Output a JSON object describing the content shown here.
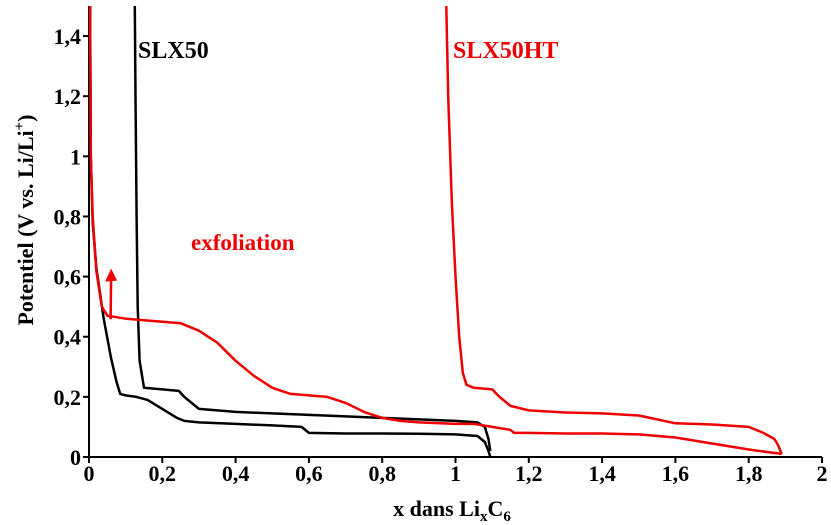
{
  "chart_data": {
    "type": "line",
    "xlabel": "x dans Li",
    "xlabel_sub1": "x",
    "xlabel_mid": "C",
    "xlabel_sub2": "6",
    "ylabel": "Potentiel (V vs. Li/Li",
    "ylabel_sup": "+",
    "ylabel_end": ")",
    "xlim": [
      0,
      2
    ],
    "ylim": [
      0,
      1.5
    ],
    "x_ticks": [
      {
        "v": 0,
        "label": "0"
      },
      {
        "v": 0.2,
        "label": "0,2"
      },
      {
        "v": 0.4,
        "label": "0,4"
      },
      {
        "v": 0.6,
        "label": "0,6"
      },
      {
        "v": 0.8,
        "label": "0,8"
      },
      {
        "v": 1,
        "label": "1"
      },
      {
        "v": 1.2,
        "label": "1,2"
      },
      {
        "v": 1.4,
        "label": "1,4"
      },
      {
        "v": 1.6,
        "label": "1,6"
      },
      {
        "v": 1.8,
        "label": "1,8"
      },
      {
        "v": 2,
        "label": "2"
      }
    ],
    "y_ticks": [
      {
        "v": 0,
        "label": "0"
      },
      {
        "v": 0.2,
        "label": "0,2"
      },
      {
        "v": 0.4,
        "label": "0,4"
      },
      {
        "v": 0.6,
        "label": "0,6"
      },
      {
        "v": 0.8,
        "label": "0,8"
      },
      {
        "v": 1,
        "label": "1"
      },
      {
        "v": 1.2,
        "label": "1,2"
      },
      {
        "v": 1.4,
        "label": "1,4"
      }
    ],
    "series": [
      {
        "name": "SLX50",
        "color": "#000000",
        "curves": [
          [
            [
              0.003,
              1.5
            ],
            [
              0.005,
              1.0
            ],
            [
              0.01,
              0.78
            ],
            [
              0.02,
              0.63
            ],
            [
              0.04,
              0.46
            ],
            [
              0.06,
              0.33
            ],
            [
              0.075,
              0.25
            ],
            [
              0.085,
              0.21
            ],
            [
              0.1,
              0.205
            ],
            [
              0.13,
              0.2
            ],
            [
              0.16,
              0.19
            ],
            [
              0.2,
              0.16
            ],
            [
              0.24,
              0.13
            ],
            [
              0.26,
              0.12
            ],
            [
              0.3,
              0.115
            ],
            [
              0.4,
              0.11
            ],
            [
              0.5,
              0.105
            ],
            [
              0.58,
              0.1
            ],
            [
              0.6,
              0.08
            ],
            [
              0.7,
              0.078
            ],
            [
              0.8,
              0.078
            ],
            [
              0.9,
              0.077
            ],
            [
              1.0,
              0.075
            ],
            [
              1.06,
              0.07
            ],
            [
              1.08,
              0.05
            ],
            [
              1.09,
              0.02
            ],
            [
              1.095,
              0.0
            ]
          ],
          [
            [
              0.125,
              1.5
            ],
            [
              0.127,
              1.2
            ],
            [
              0.13,
              0.8
            ],
            [
              0.133,
              0.5
            ],
            [
              0.138,
              0.32
            ],
            [
              0.15,
              0.23
            ],
            [
              0.2,
              0.225
            ],
            [
              0.245,
              0.22
            ],
            [
              0.26,
              0.2
            ],
            [
              0.3,
              0.16
            ],
            [
              0.4,
              0.15
            ],
            [
              0.5,
              0.145
            ],
            [
              0.6,
              0.14
            ],
            [
              0.7,
              0.135
            ],
            [
              0.8,
              0.13
            ],
            [
              0.9,
              0.125
            ],
            [
              1.0,
              0.12
            ],
            [
              1.06,
              0.115
            ],
            [
              1.08,
              0.1
            ],
            [
              1.09,
              0.06
            ],
            [
              1.095,
              0.02
            ]
          ]
        ]
      },
      {
        "name": "SLX50HT",
        "color": "#ee0000",
        "curves": [
          [
            [
              0.003,
              1.5
            ],
            [
              0.005,
              1.0
            ],
            [
              0.01,
              0.8
            ],
            [
              0.02,
              0.62
            ],
            [
              0.035,
              0.5
            ],
            [
              0.05,
              0.47
            ],
            [
              0.1,
              0.46
            ],
            [
              0.15,
              0.455
            ],
            [
              0.2,
              0.45
            ],
            [
              0.25,
              0.445
            ],
            [
              0.3,
              0.42
            ],
            [
              0.35,
              0.38
            ],
            [
              0.4,
              0.32
            ],
            [
              0.45,
              0.27
            ],
            [
              0.5,
              0.23
            ],
            [
              0.55,
              0.21
            ],
            [
              0.6,
              0.205
            ],
            [
              0.65,
              0.2
            ],
            [
              0.7,
              0.18
            ],
            [
              0.75,
              0.15
            ],
            [
              0.8,
              0.13
            ],
            [
              0.85,
              0.12
            ],
            [
              0.9,
              0.115
            ],
            [
              1.0,
              0.11
            ],
            [
              1.05,
              0.11
            ],
            [
              1.1,
              0.1
            ],
            [
              1.15,
              0.09
            ],
            [
              1.16,
              0.08
            ],
            [
              1.2,
              0.08
            ],
            [
              1.3,
              0.078
            ],
            [
              1.4,
              0.078
            ],
            [
              1.5,
              0.075
            ],
            [
              1.6,
              0.065
            ],
            [
              1.7,
              0.045
            ],
            [
              1.8,
              0.025
            ],
            [
              1.86,
              0.015
            ],
            [
              1.88,
              0.012
            ],
            [
              1.89,
              0.01
            ]
          ],
          [
            [
              0.975,
              1.5
            ],
            [
              0.98,
              1.2
            ],
            [
              0.99,
              0.85
            ],
            [
              1.0,
              0.6
            ],
            [
              1.01,
              0.4
            ],
            [
              1.02,
              0.28
            ],
            [
              1.03,
              0.24
            ],
            [
              1.05,
              0.23
            ],
            [
              1.1,
              0.225
            ],
            [
              1.12,
              0.2
            ],
            [
              1.15,
              0.17
            ],
            [
              1.2,
              0.155
            ],
            [
              1.3,
              0.148
            ],
            [
              1.4,
              0.145
            ],
            [
              1.5,
              0.138
            ],
            [
              1.6,
              0.112
            ],
            [
              1.7,
              0.108
            ],
            [
              1.8,
              0.1
            ],
            [
              1.84,
              0.08
            ],
            [
              1.87,
              0.06
            ],
            [
              1.88,
              0.04
            ],
            [
              1.89,
              0.01
            ]
          ]
        ]
      }
    ],
    "annotations": [
      {
        "text": "exfoliation",
        "color": "#ee0000",
        "target": [
          0.25,
          0.445
        ],
        "tip": [
          0.265,
          0.53
        ]
      }
    ]
  }
}
